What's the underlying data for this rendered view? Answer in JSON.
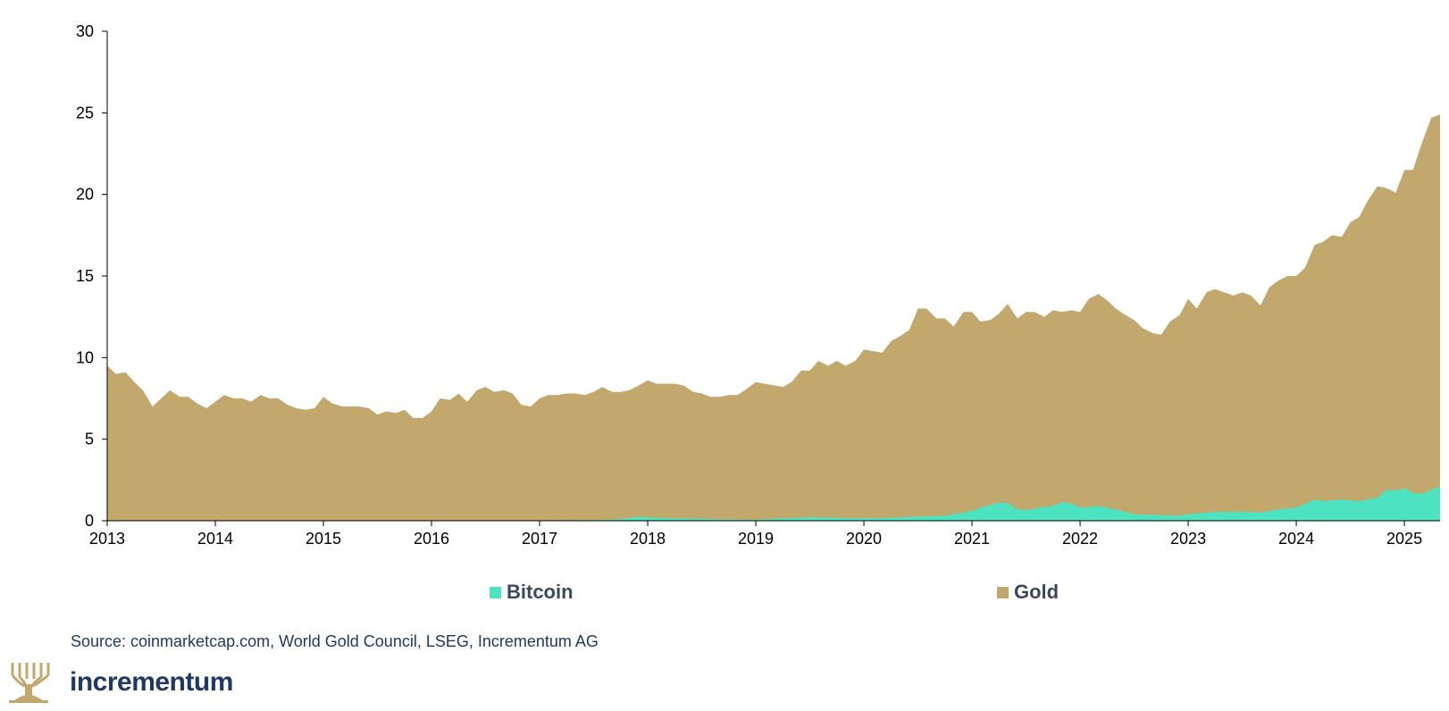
{
  "chart_data": {
    "type": "area",
    "stacked": true,
    "xlim": [
      2013,
      2025.33
    ],
    "ylim": [
      0,
      30
    ],
    "yticks": [
      0,
      5,
      10,
      15,
      20,
      25,
      30
    ],
    "xticks": [
      2013,
      2014,
      2015,
      2016,
      2017,
      2018,
      2019,
      2020,
      2021,
      2022,
      2023,
      2024,
      2025
    ],
    "title": "",
    "xlabel": "",
    "ylabel": "",
    "grid": false,
    "legend_position": "bottom",
    "series": [
      {
        "name": "Bitcoin",
        "color": "#4de3c0",
        "points": [
          [
            2013.0,
            0.0
          ],
          [
            2017.0,
            0.02
          ],
          [
            2017.5,
            0.05
          ],
          [
            2017.75,
            0.1
          ],
          [
            2017.92,
            0.25
          ],
          [
            2018.0,
            0.2
          ],
          [
            2018.25,
            0.15
          ],
          [
            2018.5,
            0.12
          ],
          [
            2018.75,
            0.08
          ],
          [
            2019.0,
            0.07
          ],
          [
            2019.25,
            0.15
          ],
          [
            2019.5,
            0.2
          ],
          [
            2019.75,
            0.18
          ],
          [
            2020.0,
            0.15
          ],
          [
            2020.25,
            0.18
          ],
          [
            2020.5,
            0.25
          ],
          [
            2020.75,
            0.3
          ],
          [
            2021.0,
            0.6
          ],
          [
            2021.08,
            0.8
          ],
          [
            2021.25,
            1.1
          ],
          [
            2021.33,
            1.1
          ],
          [
            2021.42,
            0.7
          ],
          [
            2021.5,
            0.65
          ],
          [
            2021.67,
            0.85
          ],
          [
            2021.75,
            0.9
          ],
          [
            2021.83,
            1.15
          ],
          [
            2021.92,
            1.05
          ],
          [
            2022.0,
            0.8
          ],
          [
            2022.17,
            0.9
          ],
          [
            2022.33,
            0.7
          ],
          [
            2022.5,
            0.4
          ],
          [
            2022.75,
            0.35
          ],
          [
            2022.92,
            0.3
          ],
          [
            2023.0,
            0.4
          ],
          [
            2023.17,
            0.5
          ],
          [
            2023.33,
            0.55
          ],
          [
            2023.5,
            0.55
          ],
          [
            2023.67,
            0.5
          ],
          [
            2023.83,
            0.7
          ],
          [
            2024.0,
            0.8
          ],
          [
            2024.17,
            1.3
          ],
          [
            2024.25,
            1.2
          ],
          [
            2024.42,
            1.3
          ],
          [
            2024.58,
            1.2
          ],
          [
            2024.75,
            1.4
          ],
          [
            2024.83,
            1.9
          ],
          [
            2024.92,
            1.85
          ],
          [
            2025.0,
            2.0
          ],
          [
            2025.08,
            1.7
          ],
          [
            2025.17,
            1.65
          ],
          [
            2025.25,
            1.9
          ],
          [
            2025.33,
            2.1
          ]
        ]
      },
      {
        "name": "Gold",
        "color": "#c2a86c",
        "points": [
          [
            2013.0,
            9.5
          ],
          [
            2013.08,
            9.0
          ],
          [
            2013.17,
            9.1
          ],
          [
            2013.25,
            8.5
          ],
          [
            2013.33,
            8.0
          ],
          [
            2013.42,
            7.0
          ],
          [
            2013.5,
            7.5
          ],
          [
            2013.58,
            8.0
          ],
          [
            2013.67,
            7.6
          ],
          [
            2013.75,
            7.6
          ],
          [
            2013.83,
            7.2
          ],
          [
            2013.92,
            6.9
          ],
          [
            2014.0,
            7.3
          ],
          [
            2014.08,
            7.7
          ],
          [
            2014.17,
            7.5
          ],
          [
            2014.25,
            7.5
          ],
          [
            2014.33,
            7.3
          ],
          [
            2014.42,
            7.7
          ],
          [
            2014.5,
            7.5
          ],
          [
            2014.58,
            7.5
          ],
          [
            2014.67,
            7.1
          ],
          [
            2014.75,
            6.9
          ],
          [
            2014.83,
            6.8
          ],
          [
            2014.92,
            6.9
          ],
          [
            2015.0,
            7.6
          ],
          [
            2015.08,
            7.2
          ],
          [
            2015.17,
            7.0
          ],
          [
            2015.25,
            7.0
          ],
          [
            2015.33,
            7.0
          ],
          [
            2015.42,
            6.9
          ],
          [
            2015.5,
            6.5
          ],
          [
            2015.58,
            6.7
          ],
          [
            2015.67,
            6.6
          ],
          [
            2015.75,
            6.8
          ],
          [
            2015.83,
            6.3
          ],
          [
            2015.92,
            6.3
          ],
          [
            2016.0,
            6.7
          ],
          [
            2016.08,
            7.5
          ],
          [
            2016.17,
            7.4
          ],
          [
            2016.25,
            7.8
          ],
          [
            2016.33,
            7.3
          ],
          [
            2016.42,
            8.0
          ],
          [
            2016.5,
            8.2
          ],
          [
            2016.58,
            7.9
          ],
          [
            2016.67,
            8.0
          ],
          [
            2016.75,
            7.8
          ],
          [
            2016.83,
            7.1
          ],
          [
            2016.92,
            7.0
          ],
          [
            2017.0,
            7.5
          ],
          [
            2017.08,
            7.7
          ],
          [
            2017.17,
            7.7
          ],
          [
            2017.25,
            7.8
          ],
          [
            2017.33,
            7.8
          ],
          [
            2017.42,
            7.7
          ],
          [
            2017.5,
            7.9
          ],
          [
            2017.58,
            8.2
          ],
          [
            2017.67,
            7.9
          ],
          [
            2017.75,
            7.9
          ],
          [
            2017.83,
            8.0
          ],
          [
            2017.92,
            8.3
          ],
          [
            2018.0,
            8.6
          ],
          [
            2018.08,
            8.4
          ],
          [
            2018.17,
            8.4
          ],
          [
            2018.25,
            8.4
          ],
          [
            2018.33,
            8.3
          ],
          [
            2018.42,
            7.9
          ],
          [
            2018.5,
            7.8
          ],
          [
            2018.58,
            7.6
          ],
          [
            2018.67,
            7.6
          ],
          [
            2018.75,
            7.7
          ],
          [
            2018.83,
            7.7
          ],
          [
            2018.92,
            8.1
          ],
          [
            2019.0,
            8.5
          ],
          [
            2019.08,
            8.4
          ],
          [
            2019.17,
            8.3
          ],
          [
            2019.25,
            8.2
          ],
          [
            2019.33,
            8.5
          ],
          [
            2019.42,
            9.2
          ],
          [
            2019.5,
            9.2
          ],
          [
            2019.58,
            9.8
          ],
          [
            2019.67,
            9.5
          ],
          [
            2019.75,
            9.8
          ],
          [
            2019.83,
            9.5
          ],
          [
            2019.92,
            9.8
          ],
          [
            2020.0,
            10.5
          ],
          [
            2020.08,
            10.4
          ],
          [
            2020.17,
            10.3
          ],
          [
            2020.25,
            11.0
          ],
          [
            2020.33,
            11.3
          ],
          [
            2020.42,
            11.7
          ],
          [
            2020.5,
            13.0
          ],
          [
            2020.58,
            13.0
          ],
          [
            2020.67,
            12.4
          ],
          [
            2020.75,
            12.4
          ],
          [
            2020.83,
            11.9
          ],
          [
            2020.92,
            12.8
          ],
          [
            2021.0,
            12.8
          ],
          [
            2021.08,
            12.2
          ],
          [
            2021.17,
            12.3
          ],
          [
            2021.25,
            12.7
          ],
          [
            2021.33,
            13.3
          ],
          [
            2021.42,
            12.4
          ],
          [
            2021.5,
            12.8
          ],
          [
            2021.58,
            12.8
          ],
          [
            2021.67,
            12.5
          ],
          [
            2021.75,
            12.9
          ],
          [
            2021.83,
            12.8
          ],
          [
            2021.92,
            12.9
          ],
          [
            2022.0,
            12.8
          ],
          [
            2022.08,
            13.6
          ],
          [
            2022.17,
            13.9
          ],
          [
            2022.25,
            13.5
          ],
          [
            2022.33,
            13.0
          ],
          [
            2022.42,
            12.6
          ],
          [
            2022.5,
            12.3
          ],
          [
            2022.58,
            11.8
          ],
          [
            2022.67,
            11.5
          ],
          [
            2022.75,
            11.4
          ],
          [
            2022.83,
            12.2
          ],
          [
            2022.92,
            12.6
          ],
          [
            2023.0,
            13.6
          ],
          [
            2023.08,
            13.0
          ],
          [
            2023.17,
            14.0
          ],
          [
            2023.25,
            14.2
          ],
          [
            2023.33,
            14.0
          ],
          [
            2023.42,
            13.8
          ],
          [
            2023.5,
            14.0
          ],
          [
            2023.58,
            13.8
          ],
          [
            2023.67,
            13.2
          ],
          [
            2023.75,
            14.3
          ],
          [
            2023.83,
            14.7
          ],
          [
            2023.92,
            15.0
          ],
          [
            2024.0,
            15.0
          ],
          [
            2024.08,
            15.5
          ],
          [
            2024.17,
            16.9
          ],
          [
            2024.25,
            17.1
          ],
          [
            2024.33,
            17.5
          ],
          [
            2024.42,
            17.4
          ],
          [
            2024.5,
            18.3
          ],
          [
            2024.58,
            18.6
          ],
          [
            2024.67,
            19.7
          ],
          [
            2024.75,
            20.5
          ],
          [
            2024.83,
            20.4
          ],
          [
            2024.92,
            20.1
          ],
          [
            2025.0,
            21.5
          ],
          [
            2025.08,
            21.5
          ],
          [
            2025.17,
            23.3
          ],
          [
            2025.25,
            24.7
          ],
          [
            2025.33,
            24.9
          ]
        ]
      }
    ]
  },
  "legend": {
    "bitcoin": "Bitcoin",
    "gold": "Gold",
    "bitcoin_color": "#4de3c0",
    "gold_color": "#c2a86c"
  },
  "source_text": "Source: coinmarketcap.com, World Gold Council, LSEG, Incrementum AG",
  "brand": {
    "name": "incrementum",
    "logo_color": "#c2a86c"
  }
}
